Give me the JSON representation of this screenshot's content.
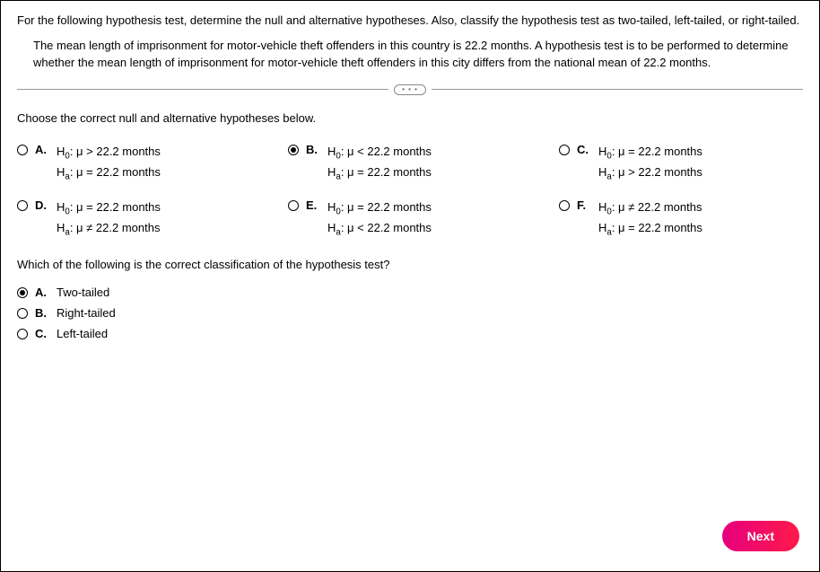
{
  "questionText": "For the following hypothesis test, determine the null and alternative hypotheses. Also, classify the hypothesis test as two-tailed, left-tailed, or right-tailed.",
  "subText": "The mean length of imprisonment for motor-vehicle theft offenders in this country is 22.2 months. A hypothesis test is to be performed to determine whether the mean length of imprisonment for motor-vehicle theft offenders in this city differs from the national mean of 22.2 months.",
  "expanderDots": "• • •",
  "prompt1": "Choose the correct null and alternative hypotheses below.",
  "value": "22.2",
  "unit": "months",
  "hypOptions": [
    {
      "letter": "A.",
      "h0op": ">",
      "haop": "=",
      "selected": false
    },
    {
      "letter": "B.",
      "h0op": "<",
      "haop": "=",
      "selected": true
    },
    {
      "letter": "C.",
      "h0op": "=",
      "haop": ">",
      "selected": false
    },
    {
      "letter": "D.",
      "h0op": "=",
      "haop": "≠",
      "selected": false
    },
    {
      "letter": "E.",
      "h0op": "=",
      "haop": "<",
      "selected": false
    },
    {
      "letter": "F.",
      "h0op": "≠",
      "haop": "=",
      "selected": false
    }
  ],
  "prompt2": "Which of the following is the correct classification of the hypothesis test?",
  "classifyOptions": [
    {
      "letter": "A.",
      "label": "Two-tailed",
      "selected": true
    },
    {
      "letter": "B.",
      "label": "Right-tailed",
      "selected": false
    },
    {
      "letter": "C.",
      "label": "Left-tailed",
      "selected": false
    }
  ],
  "nextLabel": "Next"
}
